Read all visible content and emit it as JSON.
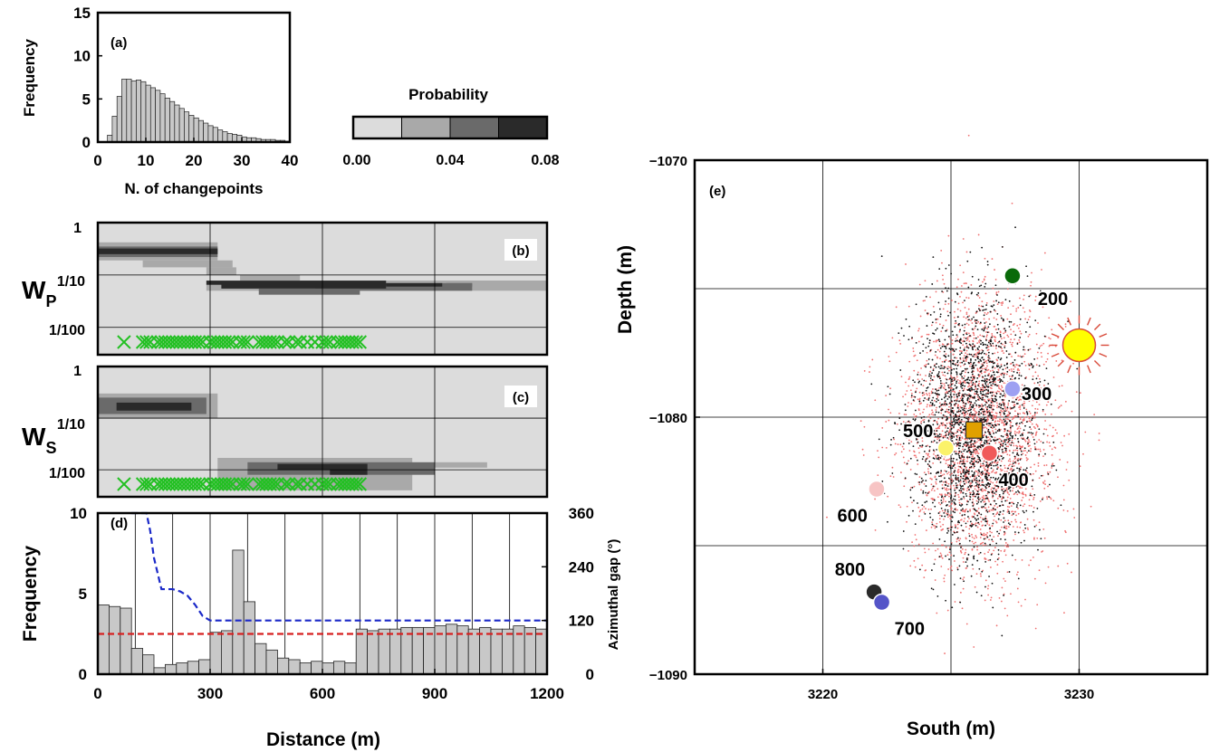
{
  "chart_data": [
    {
      "panel": "(a)",
      "type": "bar",
      "xlabel": "N. of changepoints",
      "ylabel": "Frequency",
      "xlim": [
        0,
        40
      ],
      "ylim": [
        0,
        15
      ],
      "xticks": [
        0,
        10,
        20,
        30,
        40
      ],
      "yticks": [
        0,
        5,
        10,
        15
      ],
      "bin_width": 1,
      "x": [
        2,
        3,
        4,
        5,
        6,
        7,
        8,
        9,
        10,
        11,
        12,
        13,
        14,
        15,
        16,
        17,
        18,
        19,
        20,
        21,
        22,
        23,
        24,
        25,
        26,
        27,
        28,
        29,
        30,
        31,
        32,
        33,
        34,
        35,
        36,
        37,
        38,
        39
      ],
      "values": [
        0.8,
        3.0,
        5.3,
        7.3,
        7.3,
        7.1,
        7.2,
        7.0,
        6.6,
        6.3,
        6.0,
        5.6,
        5.1,
        4.7,
        4.3,
        3.9,
        3.5,
        3.1,
        2.8,
        2.5,
        2.2,
        1.9,
        1.7,
        1.4,
        1.2,
        1.0,
        0.9,
        0.8,
        0.6,
        0.5,
        0.5,
        0.4,
        0.3,
        0.3,
        0.3,
        0.2,
        0.2,
        0.1
      ]
    },
    {
      "type": "colorbar",
      "title": "Probability",
      "ticks": [
        "0.00",
        "0.04",
        "0.08"
      ],
      "range": [
        0,
        0.08
      ],
      "colors": [
        "#dcdcdc",
        "#a9a9a9",
        "#6a6a6a",
        "#2a2a2a"
      ]
    },
    {
      "panel": "(b)",
      "type": "heatmap",
      "ylabel_main": "W",
      "ylabel_sub": "P",
      "xlim": [
        0,
        1200
      ],
      "yticks": [
        "1",
        "1/10",
        "1/100"
      ],
      "ylog_range": [
        0.003,
        1
      ],
      "cells": [
        {
          "x0": 0,
          "x1": 320,
          "y0": 0.19,
          "y1": 0.42,
          "level": 1
        },
        {
          "x0": 0,
          "x1": 320,
          "y0": 0.22,
          "y1": 0.35,
          "level": 2
        },
        {
          "x0": 0,
          "x1": 320,
          "y0": 0.25,
          "y1": 0.32,
          "level": 3
        },
        {
          "x0": 120,
          "x1": 360,
          "y0": 0.14,
          "y1": 0.19,
          "level": 1
        },
        {
          "x0": 290,
          "x1": 370,
          "y0": 0.1,
          "y1": 0.14,
          "level": 1
        },
        {
          "x0": 380,
          "x1": 540,
          "y0": 0.078,
          "y1": 0.1,
          "level": 1
        },
        {
          "x0": 290,
          "x1": 1200,
          "y0": 0.05,
          "y1": 0.078,
          "level": 1
        },
        {
          "x0": 540,
          "x1": 1200,
          "y0": 0.06,
          "y1": 0.078,
          "level": 1
        },
        {
          "x0": 580,
          "x1": 1000,
          "y0": 0.05,
          "y1": 0.07,
          "level": 2
        },
        {
          "x0": 290,
          "x1": 770,
          "y0": 0.065,
          "y1": 0.078,
          "level": 3
        },
        {
          "x0": 330,
          "x1": 770,
          "y0": 0.055,
          "y1": 0.068,
          "level": 3
        },
        {
          "x0": 770,
          "x1": 920,
          "y0": 0.06,
          "y1": 0.07,
          "level": 3
        },
        {
          "x0": 930,
          "x1": 1000,
          "y0": 0.06,
          "y1": 0.07,
          "level": 2
        },
        {
          "x0": 430,
          "x1": 700,
          "y0": 0.042,
          "y1": 0.055,
          "level": 2
        }
      ],
      "markers_x": [
        70,
        120,
        130,
        140,
        160,
        170,
        180,
        190,
        200,
        210,
        220,
        230,
        240,
        250,
        260,
        270,
        280,
        300,
        310,
        320,
        330,
        340,
        350,
        360,
        380,
        390,
        400,
        430,
        440,
        450,
        460,
        470,
        480,
        500,
        510,
        530,
        540,
        560,
        580,
        600,
        610,
        620,
        640,
        650,
        660,
        670,
        680,
        690,
        700
      ]
    },
    {
      "panel": "(c)",
      "type": "heatmap",
      "ylabel_main": "W",
      "ylabel_sub": "S",
      "xlim": [
        0,
        1200
      ],
      "yticks": [
        "1",
        "1/10",
        "1/100"
      ],
      "ylog_range": [
        0.003,
        1
      ],
      "cells": [
        {
          "x0": 0,
          "x1": 320,
          "y0": 0.1,
          "y1": 0.3,
          "level": 1
        },
        {
          "x0": 0,
          "x1": 290,
          "y0": 0.12,
          "y1": 0.25,
          "level": 2
        },
        {
          "x0": 50,
          "x1": 250,
          "y0": 0.14,
          "y1": 0.2,
          "level": 3
        },
        {
          "x0": 320,
          "x1": 840,
          "y0": 0.004,
          "y1": 0.017,
          "level": 1
        },
        {
          "x0": 900,
          "x1": 1040,
          "y0": 0.011,
          "y1": 0.014,
          "level": 1
        },
        {
          "x0": 400,
          "x1": 900,
          "y0": 0.008,
          "y1": 0.014,
          "level": 2
        },
        {
          "x0": 480,
          "x1": 720,
          "y0": 0.01,
          "y1": 0.013,
          "level": 3
        },
        {
          "x0": 620,
          "x1": 720,
          "y0": 0.008,
          "y1": 0.013,
          "level": 3
        }
      ],
      "markers_x": [
        70,
        120,
        130,
        140,
        160,
        170,
        180,
        190,
        200,
        210,
        220,
        230,
        240,
        250,
        260,
        270,
        280,
        300,
        310,
        320,
        330,
        340,
        350,
        360,
        380,
        390,
        400,
        430,
        440,
        450,
        460,
        470,
        480,
        500,
        510,
        530,
        540,
        560,
        580,
        600,
        610,
        620,
        640,
        650,
        660,
        670,
        680,
        690,
        700
      ]
    },
    {
      "panel": "(d)",
      "type": "bar",
      "xlabel": "Distance (m)",
      "ylabel": "Frequency",
      "ylabel_right": "Azimuthal gap (°)",
      "xlim": [
        0,
        1200
      ],
      "ylim": [
        0,
        10
      ],
      "ylim_right": [
        0,
        360
      ],
      "xticks": [
        0,
        300,
        600,
        900,
        1200
      ],
      "yticks": [
        0,
        5,
        10
      ],
      "yticks_right": [
        0,
        120,
        240,
        360
      ],
      "bin_width": 30,
      "values": [
        4.3,
        4.2,
        4.1,
        1.6,
        1.2,
        0.4,
        0.6,
        0.7,
        0.8,
        0.9,
        2.6,
        2.7,
        7.7,
        4.5,
        1.9,
        1.5,
        1.0,
        0.9,
        0.7,
        0.8,
        0.7,
        0.8,
        0.7,
        2.8,
        2.7,
        2.8,
        2.8,
        2.9,
        2.9,
        2.9,
        3.0,
        3.1,
        3.0,
        2.8,
        2.9,
        2.8,
        2.8,
        3.0,
        2.9,
        2.8
      ],
      "red_line": 2.5,
      "blue_line_x": [
        90,
        130,
        140,
        150,
        170,
        200,
        220,
        240,
        260,
        280,
        300,
        1200
      ],
      "blue_line_y": [
        360,
        360,
        320,
        260,
        190,
        190,
        185,
        175,
        155,
        130,
        120,
        120
      ]
    },
    {
      "panel": "(e)",
      "type": "scatter",
      "xlabel": "South (m)",
      "ylabel": "Depth (m)",
      "xlim": [
        3215,
        3235
      ],
      "ylim": [
        -1090,
        -1070
      ],
      "xticks": [
        3220,
        3230
      ],
      "yticks": [
        -1070,
        -1080,
        -1090
      ],
      "cloud_center": [
        3226.1,
        -1080.6
      ],
      "stations": [
        {
          "label": "200",
          "x": 3227.4,
          "y": -1074.5,
          "color": "#0a6a0a"
        },
        {
          "label": "300",
          "x": 3227.4,
          "y": -1078.9,
          "color": "#9da0f2"
        },
        {
          "label": "400",
          "x": 3226.5,
          "y": -1081.4,
          "color": "#f05a5a"
        },
        {
          "label": "500",
          "x": 3224.8,
          "y": -1081.2,
          "color": "#fbf26a"
        },
        {
          "label": "600",
          "x": 3222.1,
          "y": -1082.8,
          "color": "#f7c4c4"
        },
        {
          "label": "700",
          "x": 3222.3,
          "y": -1087.2,
          "color": "#5454c8"
        },
        {
          "label": "800",
          "x": 3222.0,
          "y": -1086.8,
          "color": "#2a2a2a"
        }
      ],
      "square": {
        "x": 3225.9,
        "y": -1080.5,
        "color": "#e0a000"
      },
      "sun": {
        "x": 3230.0,
        "y": -1077.2,
        "color": "#ffff00"
      }
    }
  ]
}
